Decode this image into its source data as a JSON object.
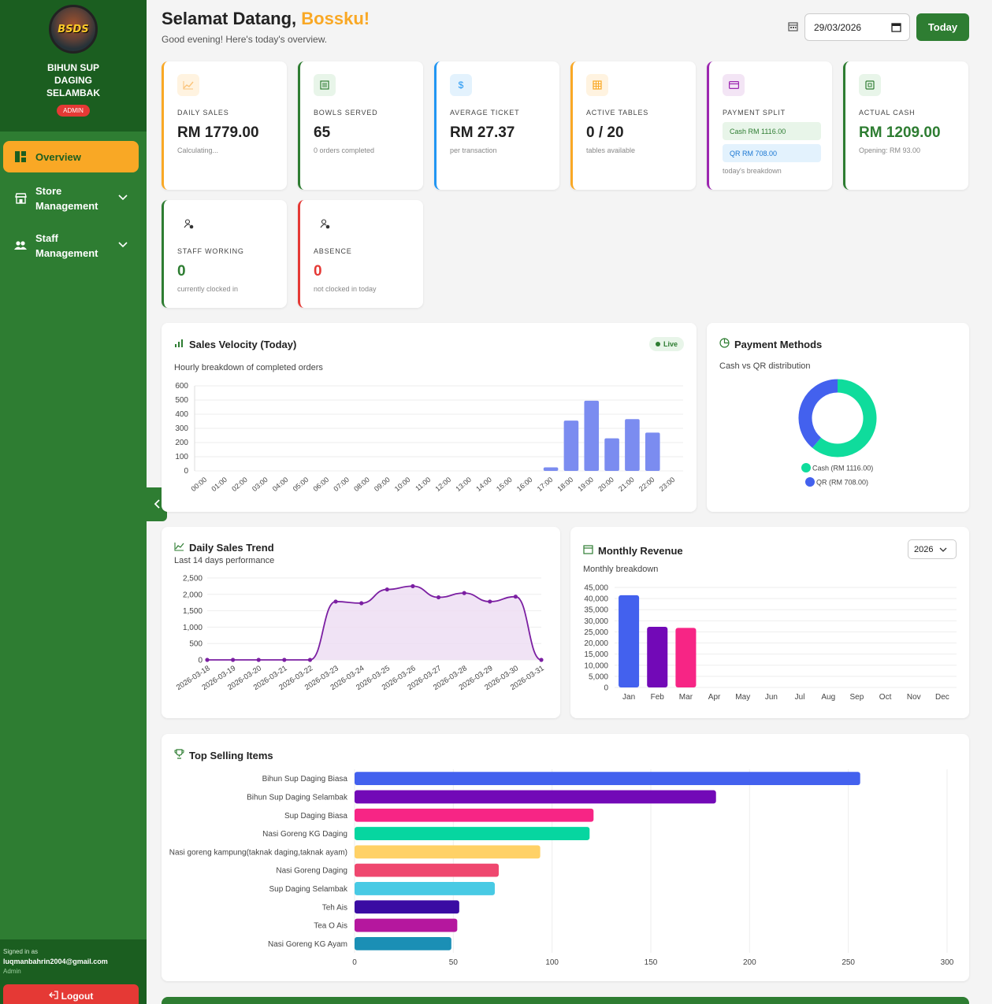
{
  "brand": {
    "logo_text": "BSDS",
    "name": "BIHUN SUP DAGING SELAMBAK",
    "role": "ADMIN"
  },
  "nav": {
    "overview": "Overview",
    "store_management": "Store Management",
    "staff_management": "Staff Management"
  },
  "account": {
    "signed_in_as": "Signed in as",
    "email": "luqmanbahrin2004@gmail.com",
    "role": "Admin",
    "logout": "Logout"
  },
  "header": {
    "greeting": "Selamat Datang,",
    "name": "Bossku!",
    "subtitle": "Good evening! Here's today's overview.",
    "date": "29/03/2026",
    "today_button": "Today"
  },
  "stats": {
    "daily_sales": {
      "label": "DAILY SALES",
      "value": "RM 1779.00",
      "sub": "Calculating..."
    },
    "bowls_served": {
      "label": "BOWLS SERVED",
      "value": "65",
      "sub": "0 orders completed"
    },
    "average_ticket": {
      "label": "AVERAGE TICKET",
      "value": "RM 27.37",
      "sub": "per transaction"
    },
    "active_tables": {
      "label": "ACTIVE TABLES",
      "value": "0 / 20",
      "sub": "tables available"
    },
    "payment_split": {
      "label": "PAYMENT SPLIT",
      "cash": "Cash RM 1116.00",
      "qr": "QR RM 708.00",
      "sub": "today's breakdown"
    },
    "actual_cash": {
      "label": "ACTUAL CASH",
      "value": "RM 1209.00",
      "sub": "Opening: RM 93.00"
    },
    "staff_working": {
      "label": "STAFF WORKING",
      "value": "0",
      "sub": "currently clocked in"
    },
    "absence": {
      "label": "ABSENCE",
      "value": "0",
      "sub": "not clocked in today"
    }
  },
  "colors": {
    "green": "#2e7d32",
    "amber": "#f9a825",
    "blue": "#2196f3",
    "purple": "#9c27b0",
    "red": "#e53935"
  },
  "panels": {
    "sales_velocity": {
      "title": "Sales Velocity (Today)",
      "badge": "Live",
      "subtitle": "Hourly breakdown of completed orders"
    },
    "payment_methods": {
      "title": "Payment Methods",
      "subtitle": "Cash vs QR distribution"
    },
    "daily_trend": {
      "title": "Daily Sales Trend",
      "subtitle": "Last 14 days performance"
    },
    "monthly_revenue": {
      "title": "Monthly Revenue",
      "subtitle": "Monthly breakdown",
      "year": "2026"
    },
    "top_selling": {
      "title": "Top Selling Items"
    }
  },
  "chart_data": [
    {
      "id": "sales_velocity",
      "type": "bar",
      "categories": [
        "00:00",
        "01:00",
        "02:00",
        "03:00",
        "04:00",
        "05:00",
        "06:00",
        "07:00",
        "08:00",
        "09:00",
        "10:00",
        "11:00",
        "12:00",
        "13:00",
        "14:00",
        "15:00",
        "16:00",
        "17:00",
        "18:00",
        "19:00",
        "20:00",
        "21:00",
        "22:00",
        "23:00"
      ],
      "values": [
        0,
        0,
        0,
        0,
        0,
        0,
        0,
        0,
        0,
        0,
        0,
        0,
        0,
        0,
        0,
        0,
        0,
        25,
        355,
        495,
        230,
        365,
        270,
        0
      ],
      "ylim": [
        0,
        600
      ],
      "yticks": [
        0,
        100,
        200,
        300,
        400,
        500,
        600
      ],
      "color": "#7b8cf0"
    },
    {
      "id": "payment_methods",
      "type": "pie",
      "labels": [
        "Cash (RM 1116.00)",
        "QR (RM 708.00)"
      ],
      "values": [
        1116,
        708
      ],
      "colors": [
        "#0fdc9c",
        "#4361ee"
      ]
    },
    {
      "id": "daily_trend",
      "type": "area",
      "x": [
        "2026-03-18",
        "2026-03-19",
        "2026-03-20",
        "2026-03-21",
        "2026-03-22",
        "2026-03-23",
        "2026-03-24",
        "2026-03-25",
        "2026-03-26",
        "2026-03-27",
        "2026-03-28",
        "2026-03-29",
        "2026-03-30",
        "2026-03-31"
      ],
      "values": [
        0,
        0,
        0,
        0,
        0,
        1780,
        1730,
        2150,
        2250,
        1910,
        2040,
        1780,
        1930,
        0
      ],
      "ylim": [
        0,
        2500
      ],
      "yticks": [
        "0",
        "500",
        "1,000",
        "1,500",
        "2,000",
        "2,500"
      ],
      "color": "#7b1fa2"
    },
    {
      "id": "monthly_revenue",
      "type": "bar",
      "categories": [
        "Jan",
        "Feb",
        "Mar",
        "Apr",
        "May",
        "Jun",
        "Jul",
        "Aug",
        "Sep",
        "Oct",
        "Nov",
        "Dec"
      ],
      "values": [
        41500,
        27300,
        26800,
        0,
        0,
        0,
        0,
        0,
        0,
        0,
        0,
        0
      ],
      "ylim": [
        0,
        45000
      ],
      "yticks": [
        "0",
        "5,000",
        "10,000",
        "15,000",
        "20,000",
        "25,000",
        "30,000",
        "35,000",
        "40,000",
        "45,000"
      ],
      "colors": [
        "#4361ee",
        "#7209b7",
        "#f72585"
      ]
    },
    {
      "id": "top_selling",
      "type": "bar",
      "orientation": "horizontal",
      "categories": [
        "Bihun Sup Daging Biasa",
        "Bihun Sup Daging Selambak",
        "Sup Daging Biasa",
        "Nasi Goreng KG Daging",
        "Nasi goreng kampung(taknak daging,taknak ayam)",
        "Nasi Goreng Daging",
        "Sup Daging Selambak",
        "Teh Ais",
        "Tea O Ais",
        "Nasi Goreng KG Ayam"
      ],
      "values": [
        256,
        183,
        121,
        119,
        94,
        73,
        71,
        53,
        52,
        49
      ],
      "xlim": [
        0,
        300
      ],
      "xticks": [
        0,
        50,
        100,
        150,
        200,
        250,
        300
      ],
      "colors": [
        "#4361ee",
        "#7209b7",
        "#f72585",
        "#06d6a0",
        "#ffd166",
        "#ef476f",
        "#48cae4",
        "#3a0ca3",
        "#b5179e",
        "#1b8fb5"
      ]
    }
  ]
}
